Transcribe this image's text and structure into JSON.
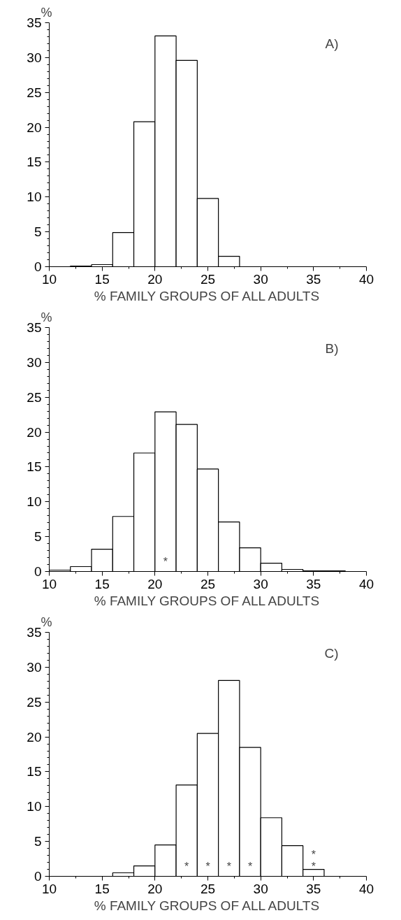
{
  "chart_data": [
    {
      "type": "histogram",
      "ylabel": "%",
      "xlabel": "% FAMILY GROUPS OF ALL ADULTS",
      "annotations": [
        "A)"
      ],
      "bins": [
        10,
        12,
        14,
        16,
        18,
        20,
        22,
        24,
        26,
        28,
        30,
        32,
        34,
        36,
        38,
        40
      ],
      "values": [
        0,
        0.1,
        0.3,
        4.9,
        20.8,
        33.1,
        29.6,
        9.8,
        1.5,
        0,
        0,
        0,
        0,
        0,
        0
      ],
      "color": "#ffffff",
      "xlim": [
        10,
        40
      ],
      "xticks": [
        10,
        15,
        20,
        25,
        30,
        35,
        40
      ],
      "ylim": [
        0,
        35
      ],
      "yticks": [
        0,
        5,
        10,
        15,
        20,
        25,
        30,
        35
      ],
      "grid": false
    },
    {
      "type": "histogram",
      "ylabel": "%",
      "xlabel": "% FAMILY GROUPS OF ALL ADULTS",
      "annotations": [
        "B)"
      ],
      "bins": [
        10,
        12,
        14,
        16,
        18,
        20,
        22,
        24,
        26,
        28,
        30,
        32,
        34,
        36,
        38,
        40
      ],
      "values": [
        0.2,
        0.7,
        3.2,
        7.9,
        17.0,
        22.9,
        21.1,
        14.7,
        7.1,
        3.4,
        1.2,
        0.3,
        0.1,
        0.1,
        0
      ],
      "value_labels": [
        null,
        null,
        null,
        null,
        null,
        "*",
        null,
        null,
        null,
        null,
        null,
        null,
        null,
        null,
        null
      ],
      "color": "#ffffff",
      "xlim": [
        10,
        40
      ],
      "xticks": [
        10,
        15,
        20,
        25,
        30,
        35,
        40
      ],
      "ylim": [
        0,
        35
      ],
      "yticks": [
        0,
        5,
        10,
        15,
        20,
        25,
        30,
        35
      ],
      "grid": false
    },
    {
      "type": "histogram",
      "ylabel": "%",
      "xlabel": "% FAMILY GROUPS OF ALL ADULTS",
      "annotations": [
        "C)"
      ],
      "bins": [
        10,
        12,
        14,
        16,
        18,
        20,
        22,
        24,
        26,
        28,
        30,
        32,
        34,
        36,
        38,
        40
      ],
      "values": [
        0,
        0,
        0,
        0.5,
        1.5,
        4.5,
        13.1,
        20.5,
        28.1,
        18.5,
        8.4,
        4.4,
        1.0,
        0,
        0
      ],
      "value_labels": [
        null,
        null,
        null,
        null,
        null,
        null,
        "*",
        "*",
        "*",
        "*",
        null,
        null,
        "*\n*",
        null,
        null
      ],
      "color": "#ffffff",
      "xlim": [
        10,
        40
      ],
      "xticks": [
        10,
        15,
        20,
        25,
        30,
        35,
        40
      ],
      "ylim": [
        0,
        35
      ],
      "yticks": [
        0,
        5,
        10,
        15,
        20,
        25,
        30,
        35
      ],
      "grid": false
    }
  ]
}
